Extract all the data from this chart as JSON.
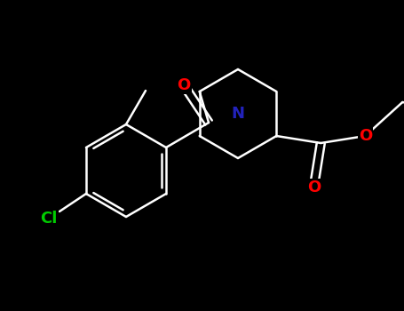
{
  "bg_color": "#000000",
  "bond_color": "#ffffff",
  "N_color": "#2222bb",
  "O_color": "#ff0000",
  "Cl_color": "#00cc00",
  "bond_width": 1.8,
  "fig_width": 4.55,
  "fig_height": 3.5,
  "dpi": 100,
  "xlim": [
    0,
    455
  ],
  "ylim": [
    0,
    350
  ]
}
